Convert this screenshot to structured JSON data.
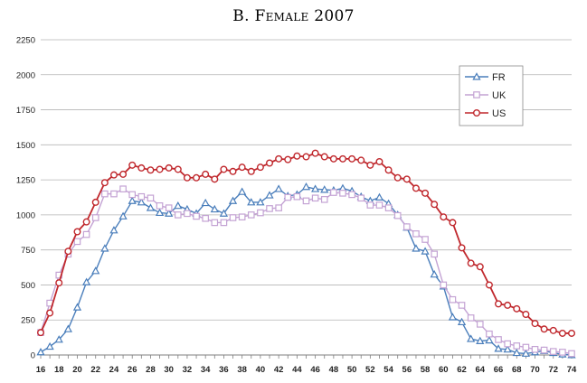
{
  "chart_data": {
    "type": "line",
    "title": "B. Female 2007",
    "xlabel": "",
    "ylabel": "",
    "xlim": [
      16,
      74
    ],
    "ylim": [
      0,
      2250
    ],
    "yticks": [
      0,
      250,
      500,
      750,
      1000,
      1250,
      1500,
      1750,
      2000,
      2250
    ],
    "xticks": [
      16,
      18,
      20,
      22,
      24,
      26,
      28,
      30,
      32,
      34,
      36,
      38,
      40,
      42,
      44,
      46,
      48,
      50,
      52,
      54,
      56,
      58,
      60,
      62,
      64,
      66,
      68,
      70,
      72,
      74
    ],
    "grid": "horizontal",
    "legend_position": "top-right",
    "x": [
      16,
      17,
      18,
      19,
      20,
      21,
      22,
      23,
      24,
      25,
      26,
      27,
      28,
      29,
      30,
      31,
      32,
      33,
      34,
      35,
      36,
      37,
      38,
      39,
      40,
      41,
      42,
      43,
      44,
      45,
      46,
      47,
      48,
      49,
      50,
      51,
      52,
      53,
      54,
      55,
      56,
      57,
      58,
      59,
      60,
      61,
      62,
      63,
      64,
      65,
      66,
      67,
      68,
      69,
      70,
      71,
      72,
      73,
      74
    ],
    "series": [
      {
        "name": "FR",
        "color": "#4a7ebb",
        "marker": "triangle",
        "values": [
          20,
          60,
          110,
          185,
          340,
          520,
          600,
          760,
          890,
          990,
          1100,
          1090,
          1050,
          1015,
          1010,
          1065,
          1040,
          1010,
          1085,
          1040,
          1010,
          1100,
          1165,
          1090,
          1090,
          1140,
          1185,
          1135,
          1145,
          1200,
          1185,
          1180,
          1175,
          1190,
          1170,
          1130,
          1100,
          1125,
          1080,
          1000,
          910,
          760,
          740,
          575,
          490,
          270,
          235,
          115,
          100,
          105,
          45,
          40,
          15,
          10,
          20,
          30,
          15,
          5,
          0
        ]
      },
      {
        "name": "UK",
        "color": "#c4a3d4",
        "marker": "square",
        "values": [
          160,
          370,
          570,
          720,
          810,
          860,
          980,
          1150,
          1150,
          1185,
          1145,
          1130,
          1120,
          1065,
          1050,
          1000,
          1010,
          990,
          975,
          945,
          945,
          980,
          985,
          1000,
          1015,
          1045,
          1050,
          1125,
          1130,
          1100,
          1120,
          1110,
          1160,
          1155,
          1145,
          1120,
          1070,
          1070,
          1050,
          995,
          915,
          865,
          825,
          720,
          500,
          395,
          355,
          265,
          220,
          150,
          110,
          80,
          65,
          55,
          40,
          35,
          25,
          20,
          10
        ]
      },
      {
        "name": "US",
        "color": "#c0282d",
        "marker": "circle",
        "values": [
          160,
          300,
          515,
          740,
          880,
          950,
          1090,
          1230,
          1285,
          1290,
          1355,
          1335,
          1320,
          1325,
          1335,
          1325,
          1265,
          1265,
          1290,
          1255,
          1325,
          1310,
          1340,
          1310,
          1340,
          1370,
          1400,
          1395,
          1420,
          1415,
          1440,
          1415,
          1400,
          1400,
          1400,
          1390,
          1355,
          1380,
          1320,
          1265,
          1255,
          1190,
          1155,
          1075,
          985,
          945,
          765,
          655,
          630,
          500,
          365,
          355,
          330,
          290,
          225,
          185,
          175,
          155,
          155
        ]
      }
    ]
  }
}
